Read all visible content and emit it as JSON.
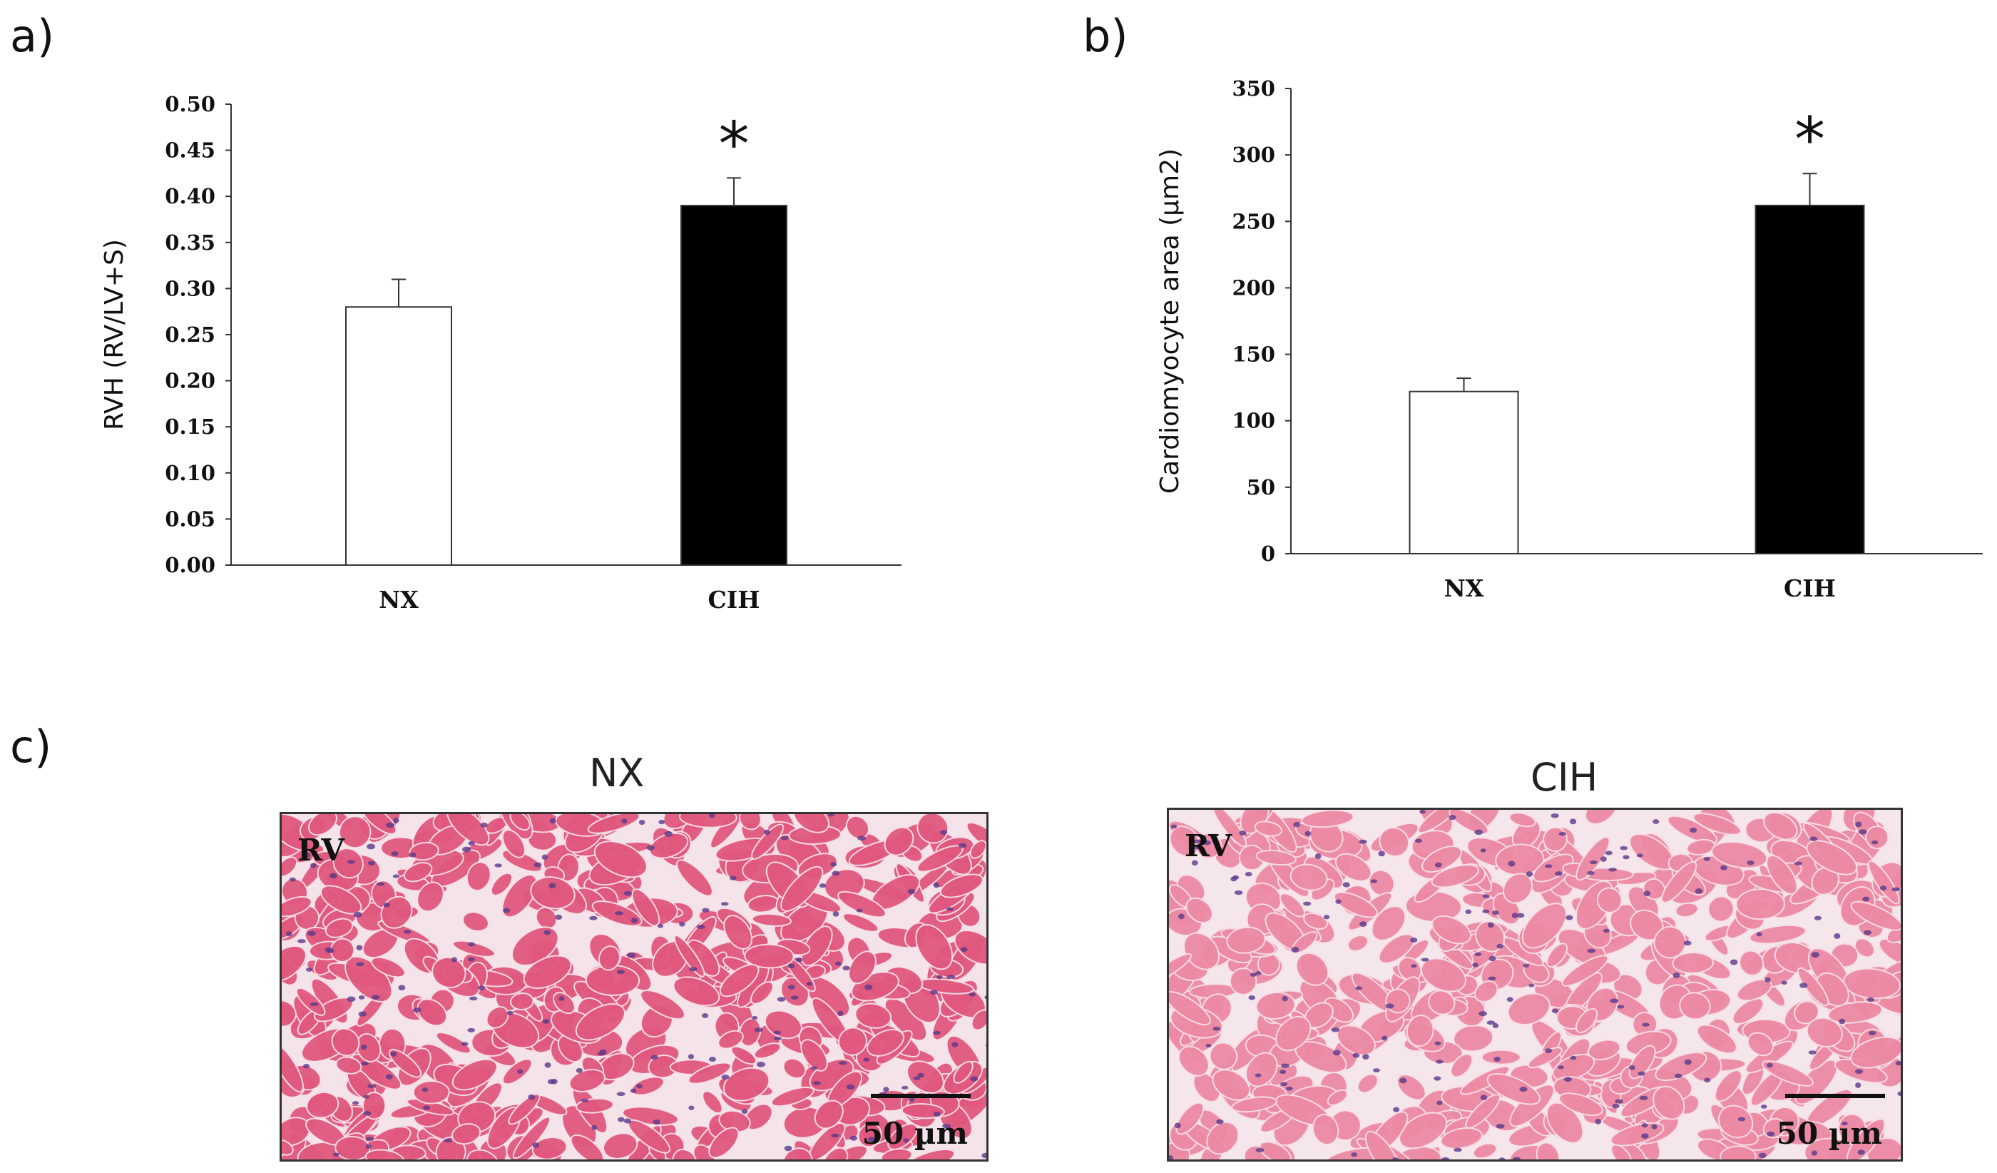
{
  "panels": {
    "a": "a)",
    "b": "b)",
    "c": "c)"
  },
  "chart_data": [
    {
      "type": "bar",
      "categories": [
        "NX",
        "CIH"
      ],
      "values": [
        0.28,
        0.39
      ],
      "errors": [
        0.03,
        0.03
      ],
      "bar_colors": [
        "#ffffff",
        "#000000"
      ],
      "ylabel": "RVH (RV/LV+S)",
      "ylim": [
        0,
        0.5
      ],
      "yticks": [
        "0.00",
        "0.05",
        "0.10",
        "0.15",
        "0.20",
        "0.25",
        "0.30",
        "0.35",
        "0.40",
        "0.45",
        "0.50"
      ],
      "significance": [
        "",
        "*"
      ],
      "grid": false
    },
    {
      "type": "bar",
      "categories": [
        "NX",
        "CIH"
      ],
      "values": [
        122,
        262
      ],
      "errors": [
        10,
        24
      ],
      "bar_colors": [
        "#ffffff",
        "#000000"
      ],
      "ylabel": "Cardiomyocyte area (µm2)",
      "ylim": [
        0,
        350
      ],
      "yticks": [
        "0",
        "50",
        "100",
        "150",
        "200",
        "250",
        "300",
        "350"
      ],
      "significance": [
        "",
        "*"
      ],
      "grid": false
    }
  ],
  "micrographs": [
    {
      "title": "NX",
      "region_label": "RV",
      "scale_label": "50 µm",
      "stain_color": "#e0587e",
      "background_color": "#f4e4ea"
    },
    {
      "title": "CIH",
      "region_label": "RV",
      "scale_label": "50 µm",
      "stain_color": "#ec8aa4",
      "background_color": "#f5e6eb"
    }
  ]
}
